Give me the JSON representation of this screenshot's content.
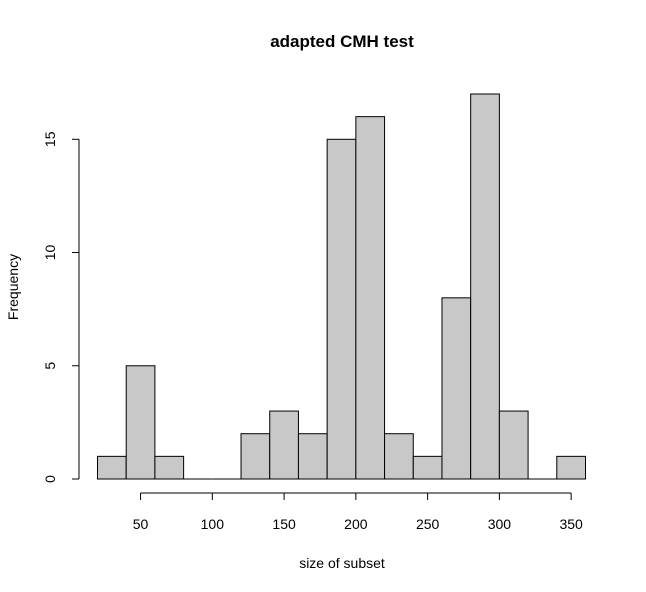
{
  "chart_data": {
    "type": "bar",
    "title": "adapted CMH test",
    "xlabel": "size of subset",
    "ylabel": "Frequency",
    "bins": [
      {
        "from": 20,
        "to": 40,
        "count": 1
      },
      {
        "from": 40,
        "to": 60,
        "count": 5
      },
      {
        "from": 60,
        "to": 80,
        "count": 1
      },
      {
        "from": 80,
        "to": 100,
        "count": 0
      },
      {
        "from": 100,
        "to": 120,
        "count": 0
      },
      {
        "from": 120,
        "to": 140,
        "count": 2
      },
      {
        "from": 140,
        "to": 160,
        "count": 3
      },
      {
        "from": 160,
        "to": 180,
        "count": 2
      },
      {
        "from": 180,
        "to": 200,
        "count": 15
      },
      {
        "from": 200,
        "to": 220,
        "count": 16
      },
      {
        "from": 220,
        "to": 240,
        "count": 2
      },
      {
        "from": 240,
        "to": 260,
        "count": 1
      },
      {
        "from": 260,
        "to": 280,
        "count": 8
      },
      {
        "from": 280,
        "to": 300,
        "count": 17
      },
      {
        "from": 300,
        "to": 320,
        "count": 3
      },
      {
        "from": 320,
        "to": 340,
        "count": 0
      },
      {
        "from": 340,
        "to": 360,
        "count": 1
      }
    ],
    "x_ticks": [
      50,
      100,
      150,
      200,
      250,
      300,
      350
    ],
    "y_ticks": [
      0,
      5,
      10,
      15
    ],
    "xlim": [
      20,
      360
    ],
    "ylim": [
      0,
      17
    ],
    "grid": false,
    "bar_color": "#c8c8c8",
    "edge_color": "#000000"
  }
}
